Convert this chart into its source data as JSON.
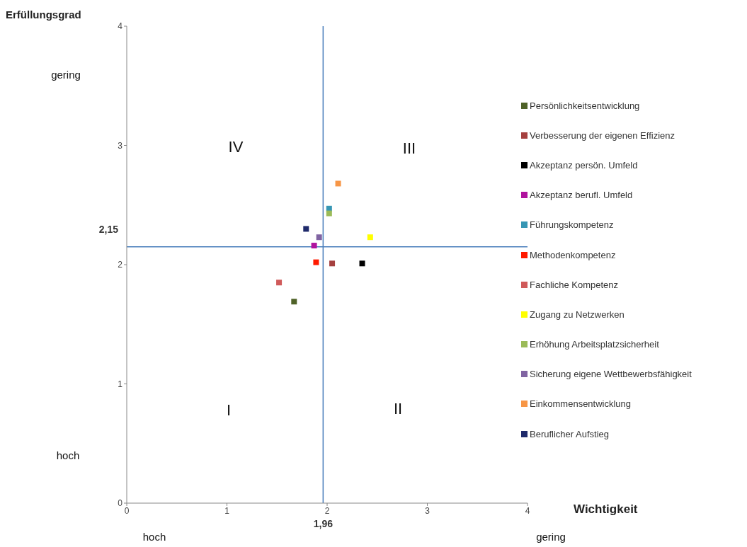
{
  "chart_data": {
    "type": "scatter",
    "xlabel": "Wichtigkeit",
    "ylabel": "Erfüllungsgrad",
    "xlim": [
      0,
      4
    ],
    "ylim": [
      0,
      4
    ],
    "xticks": [
      0,
      1,
      2,
      3,
      4
    ],
    "yticks": [
      0,
      1,
      2,
      3,
      4
    ],
    "legend": "right",
    "marker": "square",
    "series": [
      {
        "name": "Persönlichkeitsentwicklung",
        "color": "#4f6228",
        "x": [
          1.67
        ],
        "values": [
          1.69
        ]
      },
      {
        "name": "Verbesserung der eigenen Effizienz",
        "color": "#a5403f",
        "x": [
          2.05
        ],
        "values": [
          2.01
        ]
      },
      {
        "name": "Akzeptanz persön. Umfeld",
        "color": "#000000",
        "x": [
          2.35
        ],
        "values": [
          2.01
        ]
      },
      {
        "name": "Akzeptanz berufl. Umfeld",
        "color": "#b0139e",
        "x": [
          1.87
        ],
        "values": [
          2.16
        ]
      },
      {
        "name": "Führungskompetenz",
        "color": "#3696b4",
        "x": [
          2.02
        ],
        "values": [
          2.47
        ]
      },
      {
        "name": "Methodenkompetenz",
        "color": "#ff1a00",
        "x": [
          1.89
        ],
        "values": [
          2.02
        ]
      },
      {
        "name": "Fachliche Kompetenz",
        "color": "#d05a5a",
        "x": [
          1.52
        ],
        "values": [
          1.85
        ]
      },
      {
        "name": "Zugang zu Netzwerken",
        "color": "#ffff00",
        "x": [
          2.43
        ],
        "values": [
          2.23
        ]
      },
      {
        "name": "Erhöhung Arbeitsplatzsicherheit",
        "color": "#9bbb59",
        "x": [
          2.02
        ],
        "values": [
          2.43
        ]
      },
      {
        "name": "Sicherung eigene Wettbewerbsfähigkeit",
        "color": "#8064a2",
        "x": [
          1.92
        ],
        "values": [
          2.23
        ]
      },
      {
        "name": "Einkommensentwicklung",
        "color": "#f79646",
        "x": [
          2.11
        ],
        "values": [
          2.68
        ]
      },
      {
        "name": "Beruflicher Aufstieg",
        "color": "#1f2a6b",
        "x": [
          1.79
        ],
        "values": [
          2.3
        ]
      }
    ],
    "ref_lines": [
      {
        "axis": "x",
        "value": 1.96,
        "label": "1,96",
        "color": "#4a7ebb"
      },
      {
        "axis": "y",
        "value": 2.15,
        "label": "2,15",
        "color": "#4a7ebb"
      }
    ],
    "annotations": [
      "gering",
      "hoch",
      "hoch",
      "gering",
      "IV",
      "III",
      "I",
      "II"
    ]
  }
}
